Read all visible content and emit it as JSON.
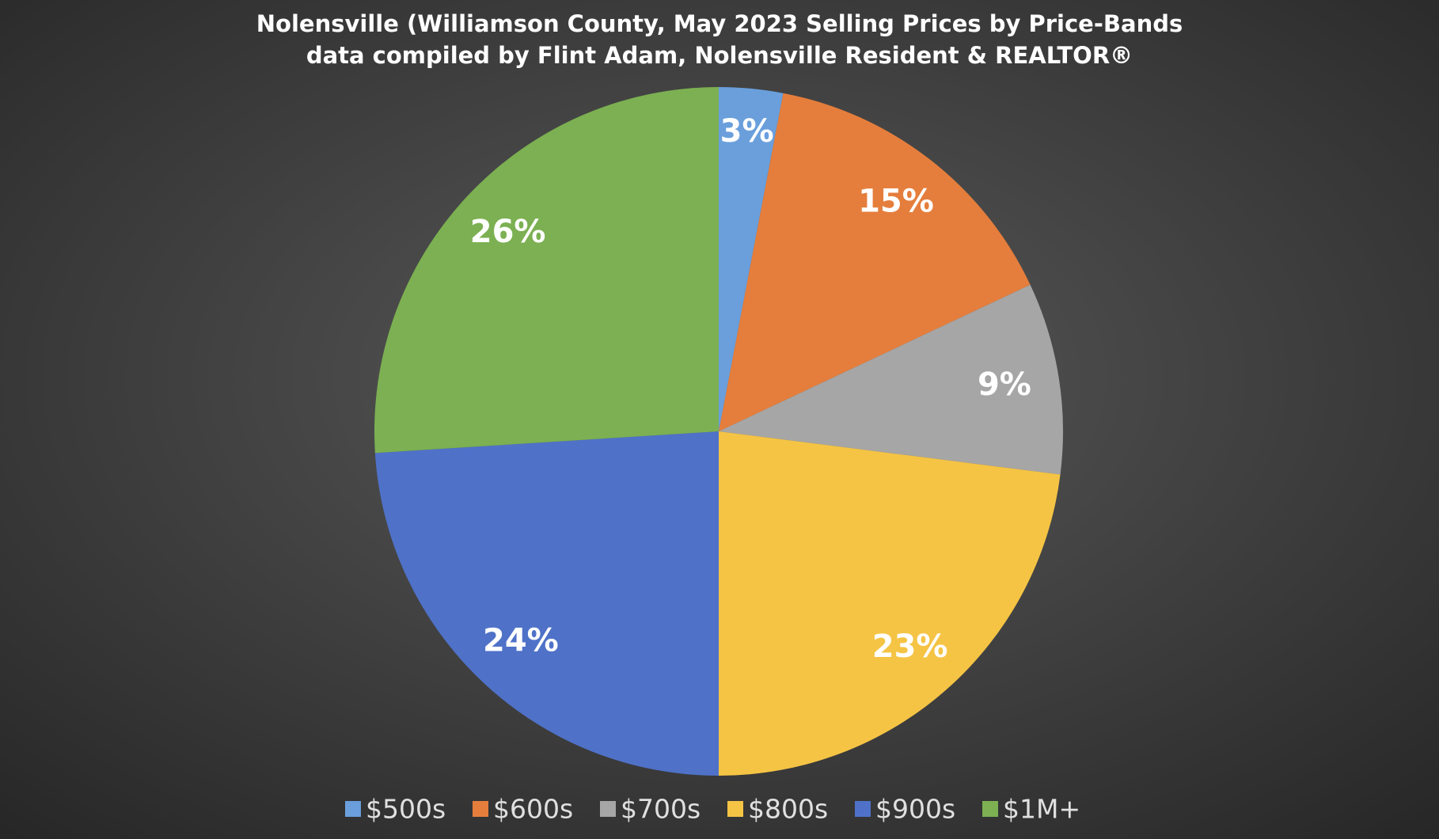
{
  "chart_data": {
    "type": "pie",
    "title": "Nolensville (Williamson County, May 2023 Selling Prices by Price-Bands",
    "subtitle": "data compiled by Flint Adam, Nolensville Resident & REALTOR®",
    "categories": [
      "$500s",
      "$600s",
      "$700s",
      "$800s",
      "$900s",
      "$1M+"
    ],
    "values": [
      3,
      15,
      9,
      23,
      24,
      26
    ],
    "value_labels": [
      "3%",
      "15%",
      "9%",
      "23%",
      "24%",
      "26%"
    ],
    "colors": [
      "#6a9fdc",
      "#e57e3c",
      "#a6a6a6",
      "#f5c445",
      "#4f72c8",
      "#7cb052"
    ],
    "legend": "bottom"
  }
}
